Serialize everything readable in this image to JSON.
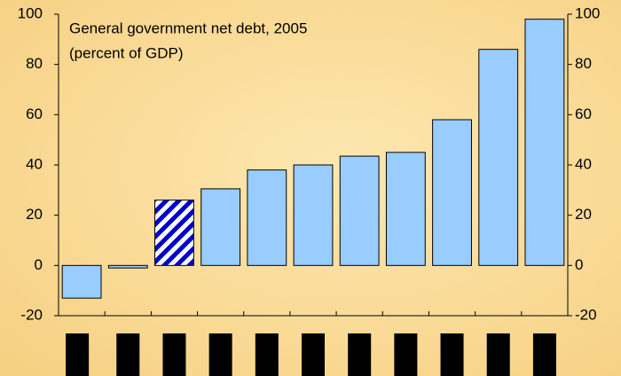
{
  "chart_data": {
    "type": "bar",
    "title": "General government net debt, 2005",
    "subtitle": "(percent of GDP)",
    "categories": [
      null,
      null,
      null,
      null,
      null,
      null,
      null,
      null,
      null,
      null,
      null
    ],
    "values": [
      -13,
      -1,
      26,
      30.5,
      38,
      40,
      43.5,
      45,
      58,
      86,
      98
    ],
    "color": "#99ccff",
    "highlight": {
      "index": 2,
      "pattern": "hatched",
      "color": "#0000cc"
    },
    "ylim": [
      -20,
      100
    ],
    "yticks": [
      -20,
      0,
      20,
      40,
      60,
      80,
      100
    ],
    "y2lim": [
      -20,
      100
    ],
    "y2ticks": [
      -20,
      0,
      20,
      40,
      60,
      80,
      100
    ],
    "grid": false
  }
}
